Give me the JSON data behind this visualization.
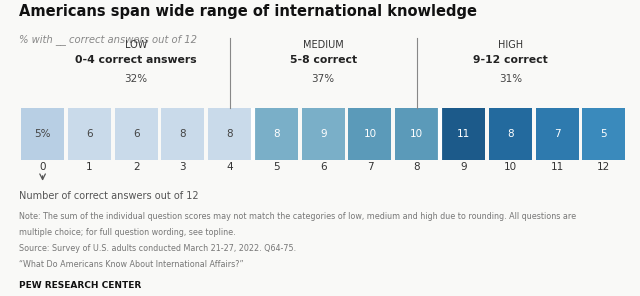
{
  "title": "Americans span wide range of international knowledge",
  "subtitle": "% with __ correct answers out of 12",
  "categories": [
    {
      "label": "LOW",
      "sublabel": "0-4 correct answers",
      "pct": "32%"
    },
    {
      "label": "MEDIUM",
      "sublabel": "5-8 correct",
      "pct": "37%"
    },
    {
      "label": "HIGH",
      "sublabel": "9-12 correct",
      "pct": "31%"
    }
  ],
  "bars": [
    {
      "x": 0,
      "value": "5%",
      "color": "#b8cfe4",
      "text_color": "#444444"
    },
    {
      "x": 1,
      "value": "6",
      "color": "#c9daea",
      "text_color": "#444444"
    },
    {
      "x": 2,
      "value": "6",
      "color": "#c9daea",
      "text_color": "#444444"
    },
    {
      "x": 3,
      "value": "8",
      "color": "#c9daea",
      "text_color": "#444444"
    },
    {
      "x": 4,
      "value": "8",
      "color": "#c9daea",
      "text_color": "#444444"
    },
    {
      "x": 5,
      "value": "8",
      "color": "#7aafc8",
      "text_color": "#ffffff"
    },
    {
      "x": 6,
      "value": "9",
      "color": "#7aafc8",
      "text_color": "#ffffff"
    },
    {
      "x": 7,
      "value": "10",
      "color": "#5b9ab9",
      "text_color": "#ffffff"
    },
    {
      "x": 8,
      "value": "10",
      "color": "#5b9ab9",
      "text_color": "#ffffff"
    },
    {
      "x": 9,
      "value": "11",
      "color": "#1c5a8a",
      "text_color": "#ffffff"
    },
    {
      "x": 10,
      "value": "8",
      "color": "#236a9e",
      "text_color": "#ffffff"
    },
    {
      "x": 11,
      "value": "7",
      "color": "#2e7aae",
      "text_color": "#ffffff"
    },
    {
      "x": 12,
      "value": "5",
      "color": "#3a8abc",
      "text_color": "#ffffff"
    }
  ],
  "x_labels": [
    "0",
    "1",
    "2",
    "3",
    "4",
    "5",
    "6",
    "7",
    "8",
    "9",
    "10",
    "11",
    "12"
  ],
  "dividers": [
    4.5,
    8.5
  ],
  "xlabel": "Number of correct answers out of 12",
  "note_line1": "Note: The sum of the individual question scores may not match the categories of low, medium and high due to rounding. All questions are",
  "note_line2": "multiple choice; for full question wording, see topline.",
  "note_line3": "Source: Survey of U.S. adults conducted March 21-27, 2022. Q64-75.",
  "note_line4": "“What Do Americans Know About International Affairs?”",
  "footer": "PEW RESEARCH CENTER",
  "bg_color": "#f9f9f7",
  "divider_line_color": "#888888",
  "bar_gap_color": "#ffffff"
}
